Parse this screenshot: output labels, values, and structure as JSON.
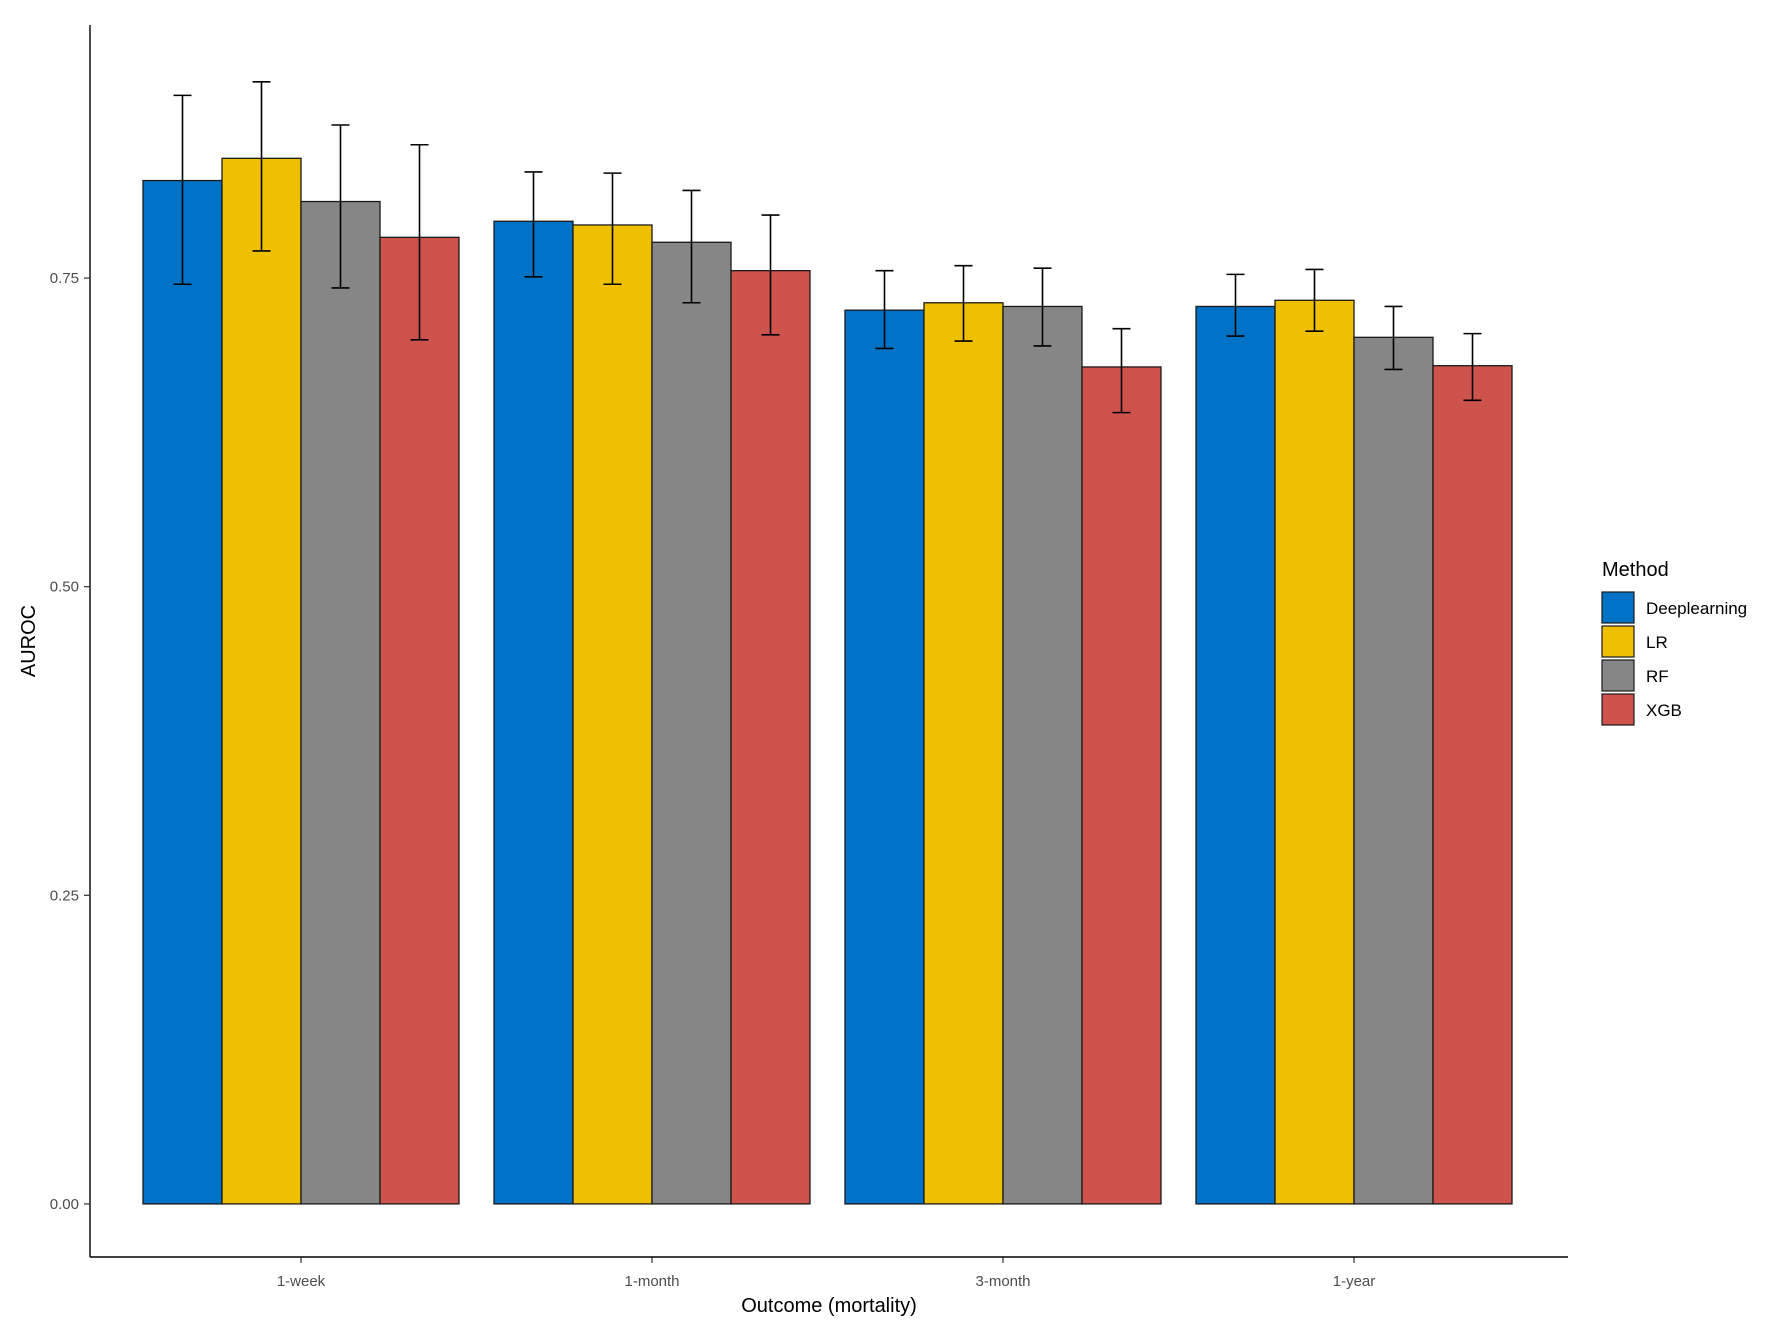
{
  "chart_data": {
    "type": "bar",
    "xlabel": "Outcome (mortality)",
    "ylabel": "AUROC",
    "categories": [
      "1-week",
      "1-month",
      "3-month",
      "1-year"
    ],
    "yticks": [
      0.0,
      0.25,
      0.5,
      0.75
    ],
    "ytick_labels": [
      "0.00",
      "0.25",
      "0.50",
      "0.75"
    ],
    "ylim": [
      -0.043,
      0.955
    ],
    "grid": false,
    "legend": {
      "title": "Method",
      "position": "right"
    },
    "series": [
      {
        "name": "Deeplearning",
        "color": "#0072C6",
        "values": [
          0.829,
          0.796,
          0.724,
          0.727
        ],
        "error_low": [
          0.745,
          0.751,
          0.693,
          0.703
        ],
        "error_high": [
          0.898,
          0.836,
          0.756,
          0.753
        ]
      },
      {
        "name": "LR",
        "color": "#EFC000",
        "values": [
          0.847,
          0.793,
          0.73,
          0.732
        ],
        "error_low": [
          0.772,
          0.745,
          0.699,
          0.707
        ],
        "error_high": [
          0.909,
          0.835,
          0.76,
          0.757
        ]
      },
      {
        "name": "RF",
        "color": "#868686",
        "values": [
          0.812,
          0.779,
          0.727,
          0.702
        ],
        "error_low": [
          0.742,
          0.73,
          0.695,
          0.676
        ],
        "error_high": [
          0.874,
          0.821,
          0.758,
          0.727
        ]
      },
      {
        "name": "XGB",
        "color": "#CD534C",
        "values": [
          0.783,
          0.756,
          0.678,
          0.679
        ],
        "error_low": [
          0.7,
          0.704,
          0.641,
          0.651
        ],
        "error_high": [
          0.858,
          0.801,
          0.709,
          0.705
        ]
      }
    ]
  }
}
